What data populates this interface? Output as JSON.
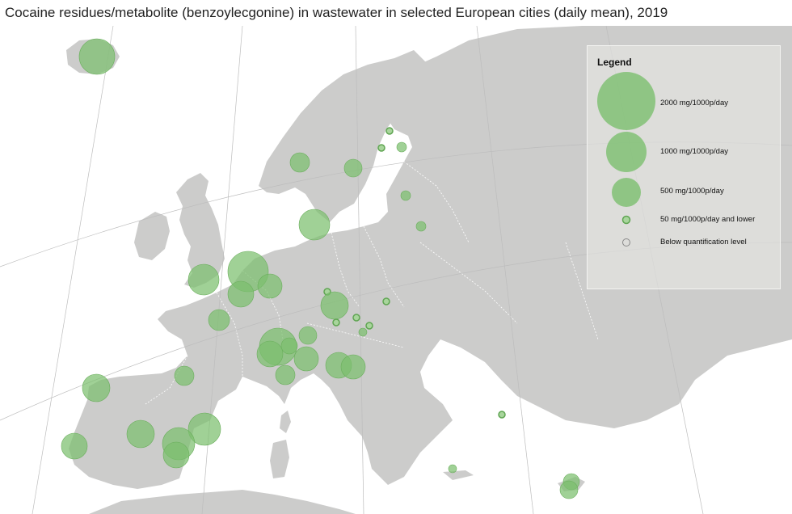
{
  "title": "Cocaine residues/metabolite (benzoylecgonine) in wastewater in selected European cities (daily mean), 2019",
  "legend": {
    "title": "Legend",
    "items": [
      {
        "label": "2000 mg/1000p/day",
        "value": 2000
      },
      {
        "label": "1000 mg/1000p/day",
        "value": 1000
      },
      {
        "label": "500 mg/1000p/day",
        "value": 500
      },
      {
        "label": "50 mg/1000p/day and lower",
        "value": 50
      },
      {
        "label": "Below quantification level",
        "value": 0
      }
    ]
  },
  "colors": {
    "circle_fill": "#7cbf6e",
    "circle_stroke": "#6aae5c",
    "land": "#cccccb",
    "sea": "#ffffff",
    "graticule": "#bfbfbf",
    "borders": "#ffffff"
  }
}
